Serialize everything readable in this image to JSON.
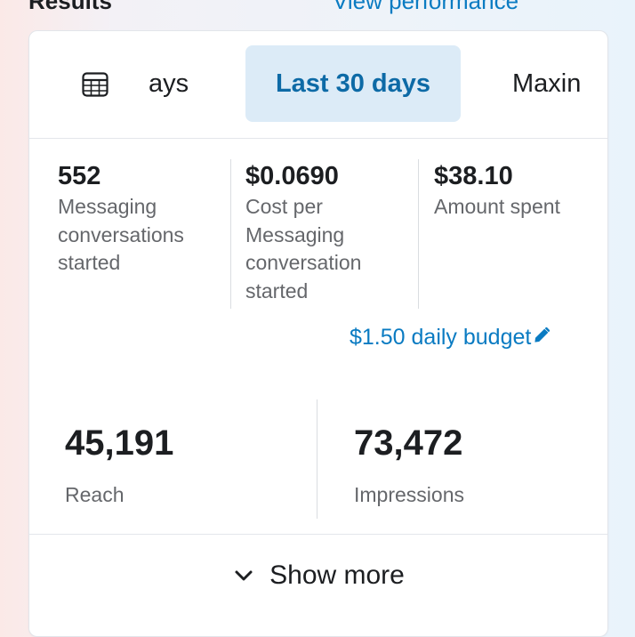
{
  "header": {
    "section_title": "Results",
    "view_link": "View performance"
  },
  "tabs": {
    "custom_partial_label": "ays",
    "active_label": "Last 30 days",
    "clipped_label": "Maxin",
    "calendar_icon": "calendar-grid-icon"
  },
  "metrics": [
    {
      "value": "552",
      "label": "Messaging conversations started"
    },
    {
      "value": "$0.0690",
      "label": "Cost per Messaging conversation started"
    },
    {
      "value": "$38.10",
      "label": "Amount spent"
    }
  ],
  "budget": {
    "label": "$1.50 daily budget",
    "icon": "pencil-icon"
  },
  "big_metrics": [
    {
      "value": "45,191",
      "label": "Reach"
    },
    {
      "value": "73,472",
      "label": "Impressions"
    }
  ],
  "footer": {
    "show_more_label": "Show more",
    "icon": "chevron-down-icon"
  },
  "colors": {
    "accent": "#0a7bc2",
    "active_tab_bg": "#dcebf7",
    "active_tab_text": "#0d6aa6"
  }
}
